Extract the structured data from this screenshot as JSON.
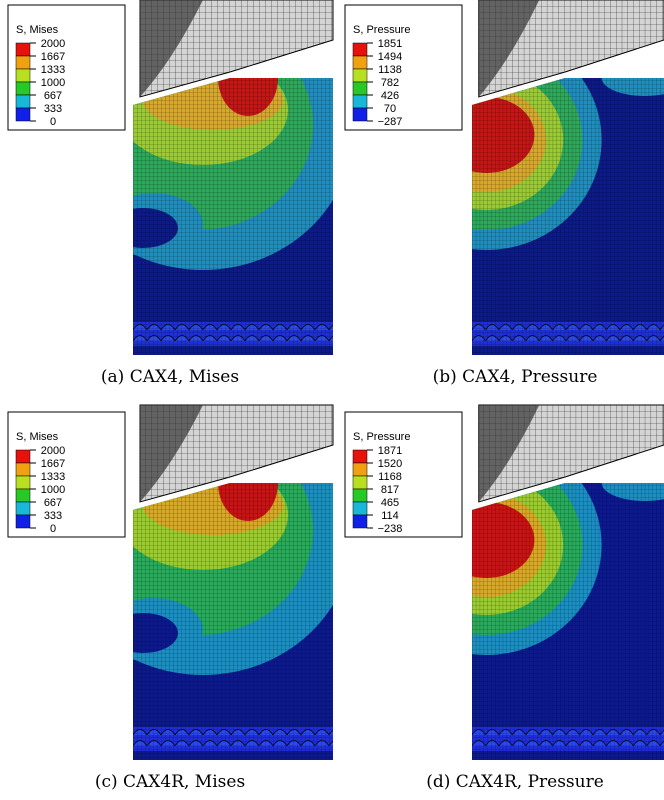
{
  "panels": [
    {
      "caption": "(a)  CAX4, Mises",
      "legend": {
        "title": "S, Mises",
        "labels": [
          "2000",
          "1667",
          "1333",
          "1000",
          "667",
          "333",
          "0"
        ]
      }
    },
    {
      "caption": "(b)  CAX4, Pressure",
      "legend": {
        "title": "S, Pressure",
        "labels": [
          "1851",
          "1494",
          "1138",
          "782",
          "426",
          "70",
          "−287"
        ]
      }
    },
    {
      "caption": "(c)  CAX4R, Mises",
      "legend": {
        "title": "S, Mises",
        "labels": [
          "2000",
          "1667",
          "1333",
          "1000",
          "667",
          "333",
          "0"
        ]
      }
    },
    {
      "caption": "(d)  CAX4R, Pressure",
      "legend": {
        "title": "S, Pressure",
        "labels": [
          "1871",
          "1520",
          "1168",
          "817",
          "465",
          "114",
          "−238"
        ]
      }
    }
  ]
}
